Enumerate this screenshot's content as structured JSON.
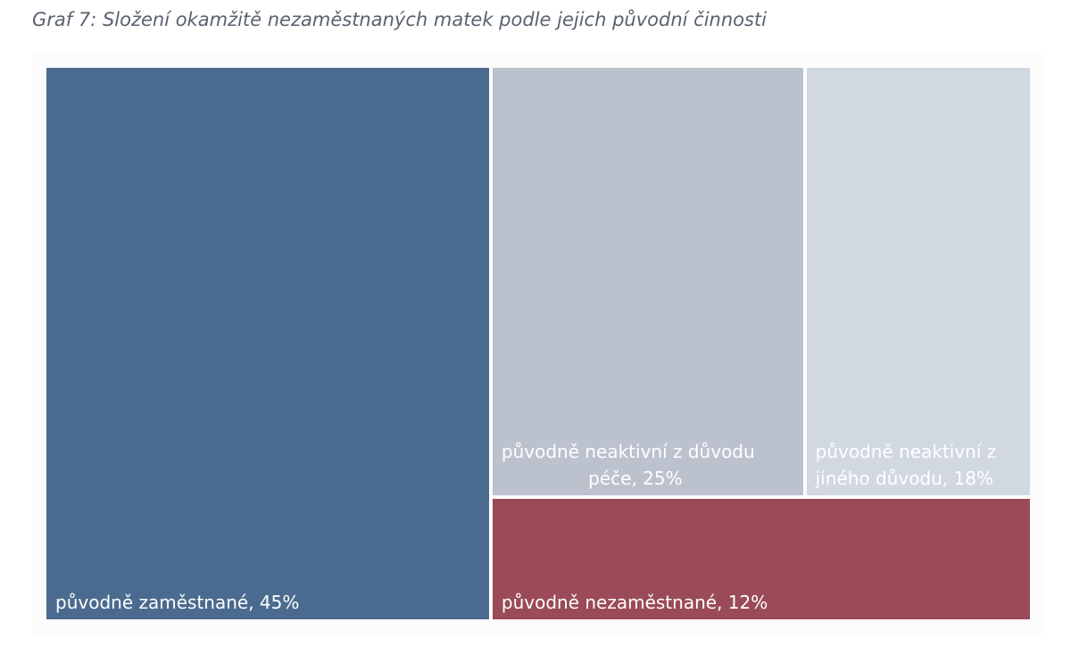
{
  "title": "Graf 7: Složení okamžitě nezaměstnaných matek podle jejich původní činnosti",
  "chart_data": {
    "type": "treemap",
    "title": "Graf 7: Složení okamžitě nezaměstnaných matek podle jejich původní činnosti",
    "unit": "%",
    "tiles": [
      {
        "name": "původně zaměstnané",
        "value": 45,
        "label_lines": [
          "původně zaměstnané, 45%"
        ],
        "color": "#4a6b8f"
      },
      {
        "name": "původně neaktivní z důvodu péče",
        "value": 25,
        "label_lines": [
          "původně neaktivní z důvodu",
          "péče, 25%"
        ],
        "color": "#bcc2cd"
      },
      {
        "name": "původně neaktivní z jiného důvodu",
        "value": 18,
        "label_lines": [
          "původně neaktivní z",
          "jiného důvodu, 18%"
        ],
        "color": "#d1d8e2"
      },
      {
        "name": "původně nezaměstnané",
        "value": 12,
        "label_lines": [
          "původně nezaměstnané, 12%"
        ],
        "color": "#9a4b57"
      }
    ]
  }
}
